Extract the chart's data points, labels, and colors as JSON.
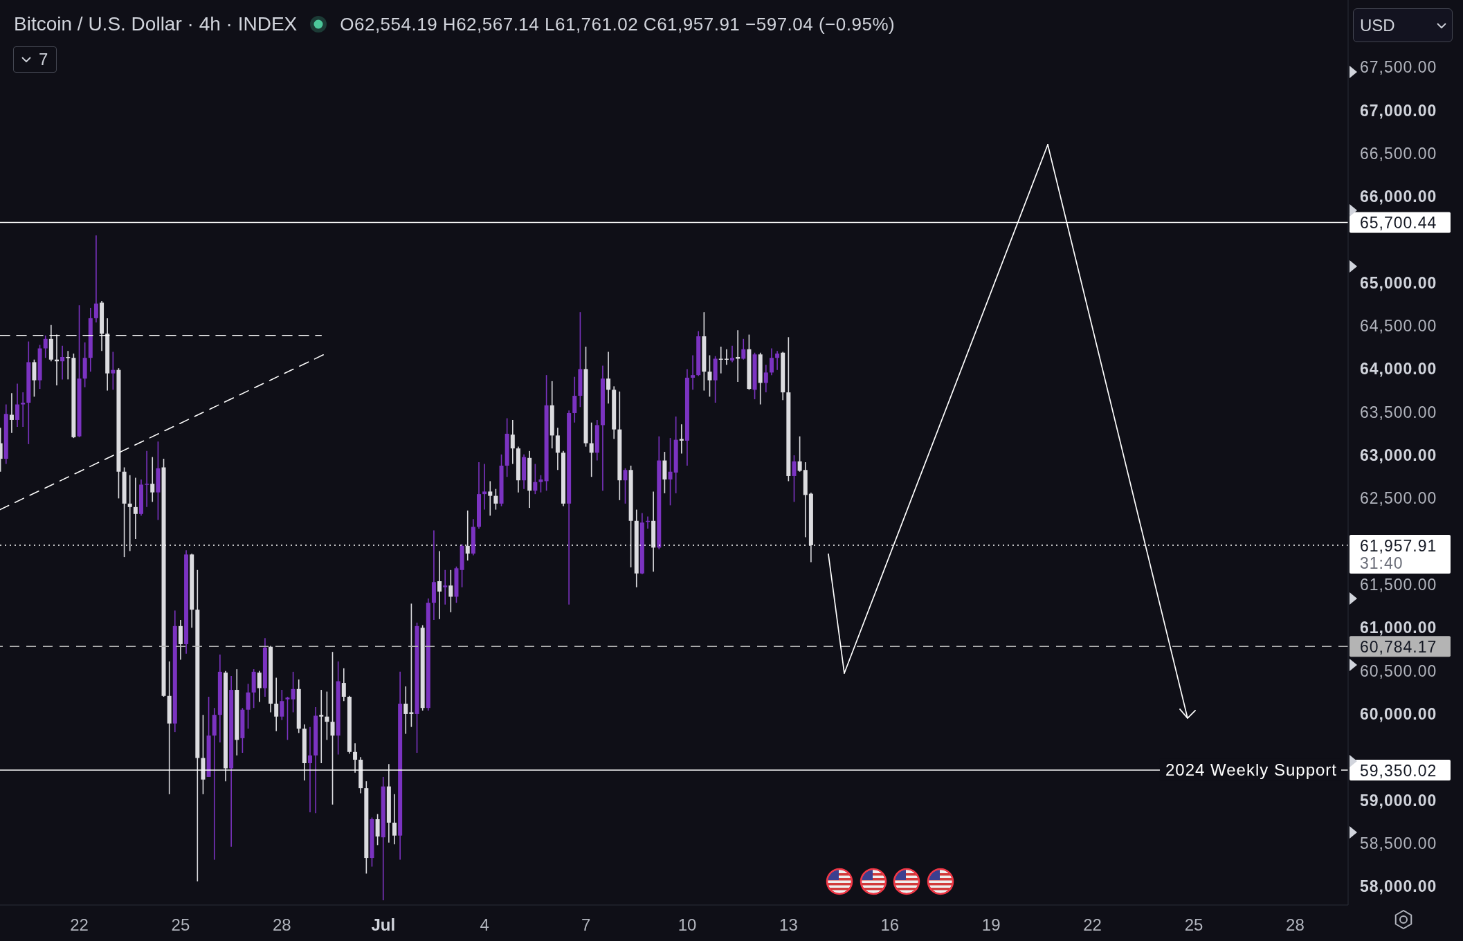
{
  "chart_data": {
    "type": "candlestick",
    "title": "Bitcoin / U.S. Dollar · 4h · INDEX",
    "subtitle": "O62,554.19 H62,567.14 L61,761.02 C61,957.91 −597.04 (−0.95%)",
    "series": [
      {
        "type": "line",
        "x": [
          "--06-19T15:40",
          "--06-29T04:00"
        ],
        "values": [
          64390,
          64390
        ],
        "color": "#ffffff",
        "line_style": "dashed"
      },
      {
        "type": "line",
        "x": [
          "--06-19T15:40",
          "--06-29T06:00"
        ],
        "values": [
          62370,
          64170
        ],
        "color": "#ffffff",
        "line_style": "dashed"
      },
      {
        "x": [
          "--06-19T16:00",
          "--06-19T20:00",
          "--06-20T00:00",
          "--06-20T04:00",
          "--06-20T08:00",
          "--06-20T12:00",
          "--06-20T16:00",
          "--06-20T20:00",
          "--06-21T00:00",
          "--06-21T04:00",
          "--06-21T08:00",
          "--06-21T12:00",
          "--06-21T16:00",
          "--06-21T20:00",
          "--06-22T00:00",
          "--06-22T04:00",
          "--06-22T08:00",
          "--06-22T12:00",
          "--06-22T16:00",
          "--06-22T20:00",
          "--06-23T00:00",
          "--06-23T04:00",
          "--06-23T08:00",
          "--06-23T12:00",
          "--06-23T16:00",
          "--06-23T20:00",
          "--06-24T00:00",
          "--06-24T04:00",
          "--06-24T08:00",
          "--06-24T12:00",
          "--06-24T16:00",
          "--06-24T20:00",
          "--06-25T00:00",
          "--06-25T04:00",
          "--06-25T08:00",
          "--06-25T12:00",
          "--06-25T16:00",
          "--06-25T20:00",
          "--06-26T00:00",
          "--06-26T04:00",
          "--06-26T08:00",
          "--06-26T12:00",
          "--06-26T16:00",
          "--06-26T20:00",
          "--06-27T00:00",
          "--06-27T04:00",
          "--06-27T08:00",
          "--06-27T12:00",
          "--06-27T16:00",
          "--06-27T20:00",
          "--06-28T00:00",
          "--06-28T04:00",
          "--06-28T08:00",
          "--06-28T12:00",
          "--06-28T16:00",
          "--06-28T20:00",
          "--06-29T00:00",
          "--06-29T04:00",
          "--06-29T08:00",
          "--06-29T12:00",
          "--06-29T16:00",
          "--06-29T20:00",
          "--06-30T00:00",
          "--06-30T04:00",
          "--06-30T08:00",
          "--06-30T12:00",
          "--06-30T16:00",
          "--06-30T20:00",
          "--07-01T00:00",
          "--07-01T04:00",
          "--07-01T08:00",
          "--07-01T12:00",
          "--07-01T16:00",
          "--07-01T20:00",
          "--07-02T00:00",
          "--07-02T04:00",
          "--07-02T08:00",
          "--07-02T12:00",
          "--07-02T16:00",
          "--07-02T20:00",
          "--07-03T00:00",
          "--07-03T04:00",
          "--07-03T08:00",
          "--07-03T12:00",
          "--07-03T16:00",
          "--07-03T20:00",
          "--07-04T00:00",
          "--07-04T04:00",
          "--07-04T08:00",
          "--07-04T12:00",
          "--07-04T16:00",
          "--07-04T20:00",
          "--07-05T00:00",
          "--07-05T04:00",
          "--07-05T08:00",
          "--07-05T12:00",
          "--07-05T16:00",
          "--07-05T20:00",
          "--07-06T00:00",
          "--07-06T04:00",
          "--07-06T08:00",
          "--07-06T12:00",
          "--07-06T16:00",
          "--07-06T20:00",
          "--07-07T00:00",
          "--07-07T04:00",
          "--07-07T08:00",
          "--07-07T12:00",
          "--07-07T16:00",
          "--07-07T20:00",
          "--07-08T00:00",
          "--07-08T04:00",
          "--07-08T08:00",
          "--07-08T12:00",
          "--07-08T16:00",
          "--07-08T20:00",
          "--07-09T00:00",
          "--07-09T04:00",
          "--07-09T08:00",
          "--07-09T12:00",
          "--07-09T16:00",
          "--07-09T20:00",
          "--07-10T00:00",
          "--07-10T04:00",
          "--07-10T08:00",
          "--07-10T12:00",
          "--07-10T16:00",
          "--07-10T20:00",
          "--07-11T00:00",
          "--07-11T04:00",
          "--07-11T08:00",
          "--07-11T12:00",
          "--07-11T16:00",
          "--07-11T20:00",
          "--07-12T00:00",
          "--07-12T04:00",
          "--07-12T08:00",
          "--07-12T12:00",
          "--07-12T16:00",
          "--07-12T20:00",
          "--07-13T00:00",
          "--07-13T04:00",
          "--07-13T08:00",
          "--07-13T12:00",
          "--07-13T16:00"
        ],
        "ohlc": [
          [
            63140,
            63320,
            62810,
            62960
          ],
          [
            62960,
            63590,
            62900,
            63480
          ],
          [
            63470,
            63720,
            63260,
            63410
          ],
          [
            63410,
            63830,
            63330,
            63590
          ],
          [
            63590,
            63730,
            63330,
            63610
          ],
          [
            63610,
            64320,
            63130,
            64080
          ],
          [
            64080,
            64110,
            63680,
            63870
          ],
          [
            63870,
            64280,
            63770,
            64240
          ],
          [
            64240,
            64390,
            64130,
            64350
          ],
          [
            64350,
            64510,
            64090,
            64110
          ],
          [
            64110,
            64400,
            63810,
            64090
          ],
          [
            64090,
            64270,
            63880,
            64140
          ],
          [
            64140,
            64210,
            63880,
            64130
          ],
          [
            64130,
            64180,
            63200,
            63210
          ],
          [
            63220,
            64740,
            63210,
            63890
          ],
          [
            63890,
            64310,
            63790,
            64130
          ],
          [
            64130,
            64710,
            63970,
            64590
          ],
          [
            64590,
            65550,
            64540,
            64760
          ],
          [
            64770,
            64790,
            64210,
            64410
          ],
          [
            64410,
            64590,
            63750,
            63950
          ],
          [
            63950,
            64200,
            63760,
            63990
          ],
          [
            63990,
            64010,
            62500,
            62810
          ],
          [
            62810,
            62860,
            61820,
            62440
          ],
          [
            62440,
            62770,
            61890,
            62400
          ],
          [
            62400,
            62740,
            62030,
            62320
          ],
          [
            62320,
            62720,
            62300,
            62660
          ],
          [
            62660,
            63050,
            62400,
            62670
          ],
          [
            62670,
            62980,
            62460,
            62570
          ],
          [
            62570,
            63160,
            62250,
            62850
          ],
          [
            62860,
            62960,
            60200,
            60210
          ],
          [
            60210,
            60610,
            59070,
            59890
          ],
          [
            59890,
            61200,
            59790,
            61020
          ],
          [
            61020,
            61090,
            60630,
            60810
          ],
          [
            60810,
            61900,
            60700,
            61850
          ],
          [
            61850,
            61860,
            61000,
            61210
          ],
          [
            61210,
            61670,
            58060,
            59490
          ],
          [
            59490,
            59990,
            59070,
            59240
          ],
          [
            59270,
            60200,
            59270,
            59750
          ],
          [
            59750,
            60070,
            58310,
            59990
          ],
          [
            59990,
            60690,
            59670,
            60490
          ],
          [
            60480,
            60500,
            59220,
            59370
          ],
          [
            59370,
            60440,
            58460,
            60280
          ],
          [
            60280,
            60520,
            59520,
            59700
          ],
          [
            59720,
            60070,
            59550,
            60050
          ],
          [
            60050,
            60350,
            59830,
            60250
          ],
          [
            60250,
            60520,
            60070,
            60490
          ],
          [
            60480,
            60500,
            60140,
            60300
          ],
          [
            60300,
            60880,
            60200,
            60770
          ],
          [
            60780,
            60790,
            60020,
            60120
          ],
          [
            60120,
            60420,
            59800,
            59970
          ],
          [
            59970,
            60280,
            59930,
            60150
          ],
          [
            60170,
            60200,
            59700,
            60190
          ],
          [
            60170,
            60490,
            60020,
            60290
          ],
          [
            60290,
            60400,
            59780,
            59830
          ],
          [
            59830,
            59880,
            59230,
            59430
          ],
          [
            59430,
            59850,
            58860,
            59520
          ],
          [
            59520,
            60080,
            58850,
            59980
          ],
          [
            59990,
            60280,
            59430,
            59970
          ],
          [
            59970,
            60260,
            59700,
            59910
          ],
          [
            59910,
            60720,
            58950,
            59750
          ],
          [
            59750,
            60610,
            59530,
            60380
          ],
          [
            60360,
            60530,
            60150,
            60200
          ],
          [
            60200,
            60210,
            59540,
            59560
          ],
          [
            59560,
            59660,
            59320,
            59470
          ],
          [
            59470,
            59500,
            59080,
            59140
          ],
          [
            59140,
            59220,
            58150,
            58330
          ],
          [
            58330,
            58800,
            58230,
            58780
          ],
          [
            58780,
            58840,
            58480,
            58580
          ],
          [
            58570,
            59270,
            57840,
            59160
          ],
          [
            59160,
            59420,
            58510,
            58740
          ],
          [
            58740,
            59070,
            58490,
            58590
          ],
          [
            58590,
            60490,
            58310,
            60120
          ],
          [
            60120,
            60320,
            59770,
            60000
          ],
          [
            60020,
            61280,
            59850,
            60000
          ],
          [
            60000,
            61060,
            59550,
            61020
          ],
          [
            61000,
            61030,
            60040,
            60070
          ],
          [
            60070,
            61340,
            60040,
            61290
          ],
          [
            61290,
            62130,
            61090,
            61530
          ],
          [
            61540,
            61890,
            61100,
            61420
          ],
          [
            61470,
            61670,
            61270,
            61490
          ],
          [
            61490,
            61670,
            61180,
            61360
          ],
          [
            61360,
            61710,
            61290,
            61690
          ],
          [
            61670,
            61970,
            61470,
            61950
          ],
          [
            61950,
            62360,
            61780,
            61860
          ],
          [
            61860,
            62260,
            61840,
            62170
          ],
          [
            62170,
            62920,
            62150,
            62550
          ],
          [
            62550,
            62900,
            62370,
            62580
          ],
          [
            62580,
            62700,
            62300,
            62530
          ],
          [
            62530,
            62610,
            62370,
            62440
          ],
          [
            62440,
            63010,
            62410,
            62880
          ],
          [
            62880,
            63430,
            62750,
            63250
          ],
          [
            63240,
            63410,
            62900,
            63080
          ],
          [
            63080,
            63100,
            62570,
            62710
          ],
          [
            62710,
            63010,
            62610,
            62980
          ],
          [
            62970,
            63050,
            62390,
            62590
          ],
          [
            62590,
            62900,
            62550,
            62690
          ],
          [
            62690,
            62770,
            62570,
            62720
          ],
          [
            62700,
            63930,
            62590,
            63580
          ],
          [
            63580,
            63860,
            63080,
            63230
          ],
          [
            63230,
            63320,
            62830,
            63030
          ],
          [
            63030,
            63050,
            62410,
            62440
          ],
          [
            62440,
            63520,
            61270,
            63490
          ],
          [
            63490,
            63910,
            63380,
            63690
          ],
          [
            63690,
            64660,
            63560,
            64000
          ],
          [
            64000,
            64260,
            63100,
            63140
          ],
          [
            63140,
            63380,
            62750,
            63030
          ],
          [
            63030,
            63410,
            62940,
            63350
          ],
          [
            63350,
            64040,
            62590,
            63890
          ],
          [
            63890,
            64200,
            63600,
            63760
          ],
          [
            63760,
            63800,
            63190,
            63300
          ],
          [
            63300,
            63740,
            62480,
            62710
          ],
          [
            62710,
            62850,
            62440,
            62830
          ],
          [
            62830,
            62880,
            61700,
            62240
          ],
          [
            62240,
            62370,
            61470,
            61630
          ],
          [
            61630,
            62330,
            61620,
            62220
          ],
          [
            62230,
            62290,
            62150,
            62240
          ],
          [
            62240,
            62580,
            61650,
            61930
          ],
          [
            61930,
            63220,
            61910,
            62940
          ],
          [
            62940,
            63040,
            62560,
            62720
          ],
          [
            62720,
            63200,
            62420,
            62810
          ],
          [
            62800,
            63450,
            62560,
            63180
          ],
          [
            63190,
            63360,
            63020,
            63170
          ],
          [
            63170,
            64000,
            62880,
            63900
          ],
          [
            63900,
            64160,
            63760,
            63930
          ],
          [
            63930,
            64440,
            63920,
            64380
          ],
          [
            64380,
            64660,
            63750,
            63970
          ],
          [
            63970,
            64160,
            63680,
            63870
          ],
          [
            63870,
            64150,
            63610,
            64120
          ],
          [
            64120,
            64260,
            63950,
            64110
          ],
          [
            64120,
            64230,
            64050,
            64110
          ],
          [
            64100,
            64270,
            64080,
            64130
          ],
          [
            64140,
            64450,
            63850,
            64120
          ],
          [
            64120,
            64350,
            64110,
            64230
          ],
          [
            64230,
            64400,
            63760,
            63770
          ],
          [
            63760,
            64190,
            63650,
            64170
          ],
          [
            64170,
            64190,
            63590,
            63840
          ],
          [
            63840,
            64050,
            63730,
            63960
          ],
          [
            63960,
            64240,
            63930,
            64130
          ],
          [
            64130,
            64210,
            63990,
            64180
          ],
          [
            64190,
            64200,
            63640,
            63730
          ],
          [
            63730,
            64370,
            62700,
            62760
          ],
          [
            62760,
            63000,
            62460,
            62930
          ],
          [
            62930,
            63220,
            62810,
            62820
          ],
          [
            62830,
            62920,
            62050,
            62540
          ],
          [
            62554.19,
            62567.14,
            61761.02,
            61957.91
          ]
        ],
        "colors": [
          "#dcdce0",
          "#7b33c1",
          "#dcdce0",
          "#7b33c1",
          "#7b33c1",
          "#7b33c1",
          "#dcdce0",
          "#7b33c1",
          "#7b33c1",
          "#dcdce0",
          "#dcdce0",
          "#7b33c1",
          "#dcdce0",
          "#dcdce0",
          "#7b33c1",
          "#7b33c1",
          "#7b33c1",
          "#7b33c1",
          "#dcdce0",
          "#dcdce0",
          "#7b33c1",
          "#dcdce0",
          "#dcdce0",
          "#dcdce0",
          "#dcdce0",
          "#7b33c1",
          "#7b33c1",
          "#dcdce0",
          "#7b33c1",
          "#dcdce0",
          "#dcdce0",
          "#7b33c1",
          "#dcdce0",
          "#7b33c1",
          "#dcdce0",
          "#dcdce0",
          "#dcdce0",
          "#7b33c1",
          "#7b33c1",
          "#7b33c1",
          "#dcdce0",
          "#7b33c1",
          "#dcdce0",
          "#7b33c1",
          "#7b33c1",
          "#7b33c1",
          "#dcdce0",
          "#7b33c1",
          "#dcdce0",
          "#dcdce0",
          "#7b33c1",
          "#7b33c1",
          "#7b33c1",
          "#dcdce0",
          "#dcdce0",
          "#7b33c1",
          "#7b33c1",
          "#dcdce0",
          "#dcdce0",
          "#dcdce0",
          "#7b33c1",
          "#dcdce0",
          "#dcdce0",
          "#dcdce0",
          "#dcdce0",
          "#dcdce0",
          "#7b33c1",
          "#dcdce0",
          "#7b33c1",
          "#dcdce0",
          "#dcdce0",
          "#7b33c1",
          "#dcdce0",
          "#dcdce0",
          "#7b33c1",
          "#dcdce0",
          "#7b33c1",
          "#7b33c1",
          "#dcdce0",
          "#7b33c1",
          "#dcdce0",
          "#7b33c1",
          "#7b33c1",
          "#dcdce0",
          "#7b33c1",
          "#7b33c1",
          "#7b33c1",
          "#dcdce0",
          "#dcdce0",
          "#7b33c1",
          "#7b33c1",
          "#dcdce0",
          "#dcdce0",
          "#7b33c1",
          "#dcdce0",
          "#7b33c1",
          "#7b33c1",
          "#7b33c1",
          "#dcdce0",
          "#dcdce0",
          "#dcdce0",
          "#7b33c1",
          "#7b33c1",
          "#7b33c1",
          "#dcdce0",
          "#dcdce0",
          "#7b33c1",
          "#7b33c1",
          "#dcdce0",
          "#dcdce0",
          "#dcdce0",
          "#7b33c1",
          "#dcdce0",
          "#dcdce0",
          "#7b33c1",
          "#7b33c1",
          "#dcdce0",
          "#7b33c1",
          "#dcdce0",
          "#7b33c1",
          "#7b33c1",
          "#dcdce0",
          "#7b33c1",
          "#7b33c1",
          "#7b33c1",
          "#dcdce0",
          "#dcdce0",
          "#7b33c1",
          "#dcdce0",
          "#dcdce0",
          "#7b33c1",
          "#dcdce0",
          "#7b33c1",
          "#dcdce0",
          "#7b33c1",
          "#dcdce0",
          "#7b33c1",
          "#7b33c1",
          "#7b33c1",
          "#dcdce0",
          "#dcdce0",
          "#7b33c1",
          "#dcdce0",
          "#dcdce0",
          "#dcdce0"
        ]
      }
    ],
    "xlim": [
      "--06-19T15:40",
      "--07-29T13:40"
    ],
    "xticks": [
      {
        "value": "--06-22",
        "label": "22"
      },
      {
        "value": "--06-25",
        "label": "25"
      },
      {
        "value": "--06-28",
        "label": "28"
      },
      {
        "value": "--07-01",
        "label": "Jul"
      },
      {
        "value": "--07-04",
        "label": "4"
      },
      {
        "value": "--07-07",
        "label": "7"
      },
      {
        "value": "--07-10",
        "label": "10"
      },
      {
        "value": "--07-13",
        "label": "13"
      },
      {
        "value": "--07-16",
        "label": "16"
      },
      {
        "value": "--07-19",
        "label": "19"
      },
      {
        "value": "--07-22",
        "label": "22"
      },
      {
        "value": "--07-25",
        "label": "25"
      },
      {
        "value": "--07-28",
        "label": "28"
      }
    ],
    "ylim": [
      57785,
      68280
    ],
    "yticks": [
      {
        "value": 58000,
        "label": "58,000.00"
      },
      {
        "value": 58500,
        "label": "58,500.00"
      },
      {
        "value": 59000,
        "label": "59,000.00"
      },
      {
        "value": 60000,
        "label": "60,000.00"
      },
      {
        "value": 60500,
        "label": "60,500.00"
      },
      {
        "value": 61000,
        "label": "61,000.00"
      },
      {
        "value": 61500,
        "label": "61,500.00"
      },
      {
        "value": 62500,
        "label": "62,500.00"
      },
      {
        "value": 63000,
        "label": "63,000.00"
      },
      {
        "value": 63500,
        "label": "63,500.00"
      },
      {
        "value": 64000,
        "label": "64,000.00"
      },
      {
        "value": 64500,
        "label": "64,500.00"
      },
      {
        "value": 65000,
        "label": "65,000.00"
      },
      {
        "value": 66000,
        "label": "66,000.00"
      },
      {
        "value": 66500,
        "label": "66,500.00"
      },
      {
        "value": 67000,
        "label": "67,000.00"
      },
      {
        "value": 67500,
        "label": "67,500.00"
      }
    ],
    "ref_lines": [
      {
        "axis": "y",
        "value": 65700.44,
        "label": "65,700.44",
        "color": "#ffffff",
        "line_style": "solid"
      },
      {
        "axis": "y",
        "value": 61957.91,
        "label": "61,957.91",
        "color": "#ffffff",
        "line_style": "dotted"
      },
      {
        "axis": "y",
        "value": 60784.17,
        "label": "60,784.17",
        "color": "#b4b4b4",
        "line_style": "dashed"
      },
      {
        "axis": "y",
        "value": 59350.02,
        "label": "59,350.02",
        "color": "#ffffff",
        "line_style": "solid"
      }
    ],
    "annotations": [
      "7",
      "USD",
      "31:40",
      {
        "text": "2024 Weekly Support",
        "y": 59350.02
      }
    ]
  }
}
